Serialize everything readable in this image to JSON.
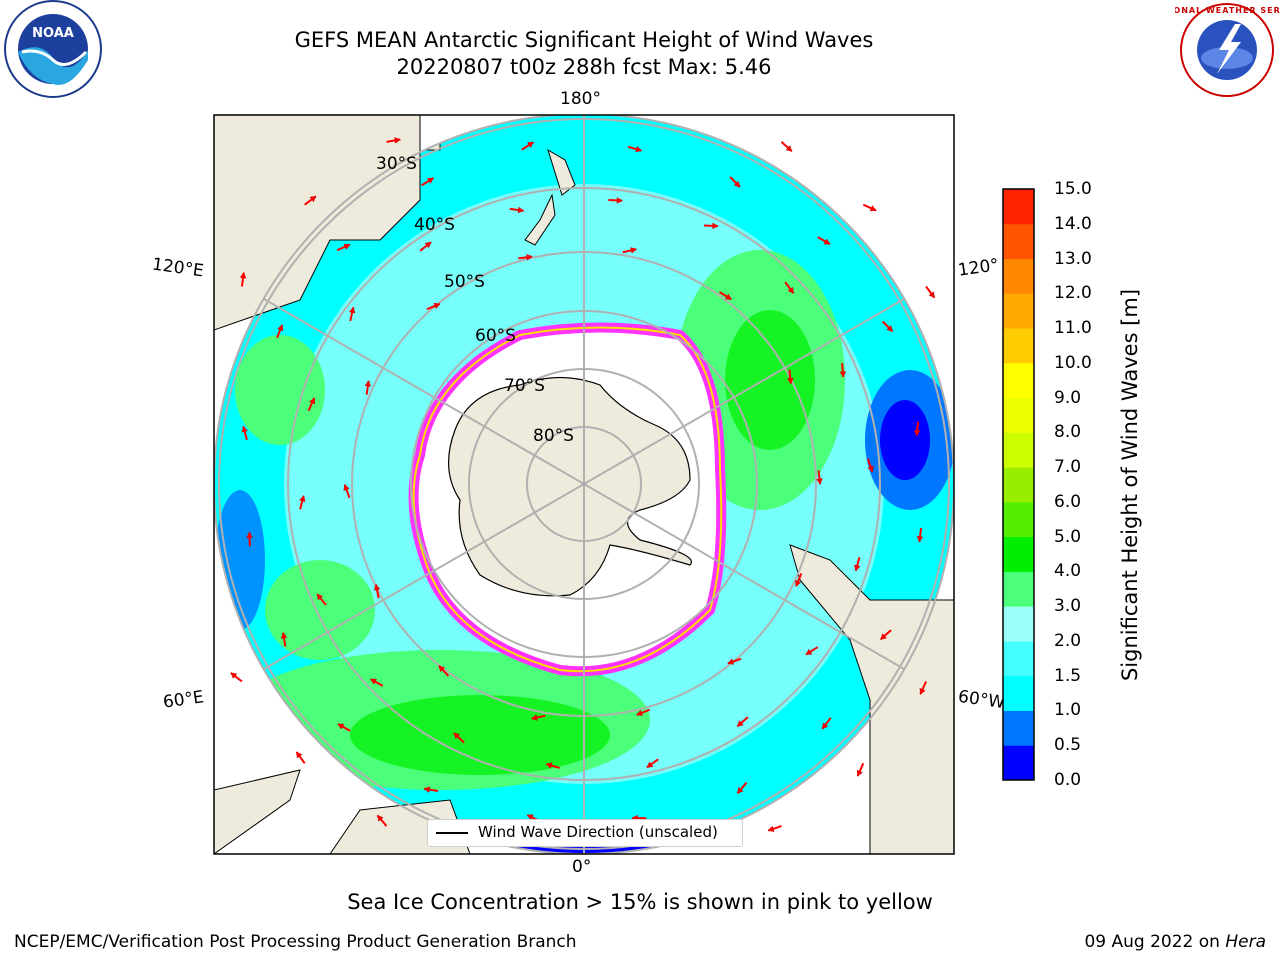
{
  "title": {
    "line1": "GEFS MEAN Antarctic Significant Height of Wind Waves",
    "line2": "20220807 t00z 288h fcst   Max: 5.46"
  },
  "map": {
    "projection": "south-polar-stereographic",
    "lon_labels": {
      "top": "180°",
      "bottom": "0°",
      "left_upper": "120°E",
      "left_lower": "60°E",
      "right_upper": "120°",
      "right_lower": "60°W"
    },
    "lat_labels": [
      "30°S",
      "40°S",
      "50°S",
      "60°S",
      "70°S",
      "80°S"
    ],
    "land_color": "#efebdc",
    "sea_ice_note_colors": [
      "#ff66ff",
      "#ffff00"
    ],
    "legend_label": "Wind Wave Direction (unscaled)",
    "arrow_color": "#ff0000"
  },
  "colorbar": {
    "title": "Significant Height of Wind Waves [m]",
    "ticks": [
      "15.0",
      "14.0",
      "13.0",
      "12.0",
      "11.0",
      "10.0",
      "9.0",
      "8.0",
      "7.0",
      "6.0",
      "5.0",
      "4.0",
      "3.0",
      "2.0",
      "1.5",
      "1.0",
      "0.5",
      "0.0"
    ],
    "colors_bottom_to_top": [
      "#0000ff",
      "#0077ff",
      "#00ffff",
      "#44ffff",
      "#9dfffa",
      "#4cff7a",
      "#00ee00",
      "#55ee00",
      "#99ee00",
      "#ccff00",
      "#eeff00",
      "#ffff00",
      "#ffcc00",
      "#ffaa00",
      "#ff8800",
      "#ff5500",
      "#ff2200"
    ]
  },
  "footer": {
    "note": "Sea Ice Concentration > 15% is shown in pink to yellow",
    "left": "NCEP/EMC/Verification Post Processing Product Generation Branch",
    "right_date": "09 Aug 2022 on ",
    "right_host": "Hera"
  },
  "logos": {
    "left": "NOAA",
    "right": "NATIONAL WEATHER SERVICE"
  }
}
